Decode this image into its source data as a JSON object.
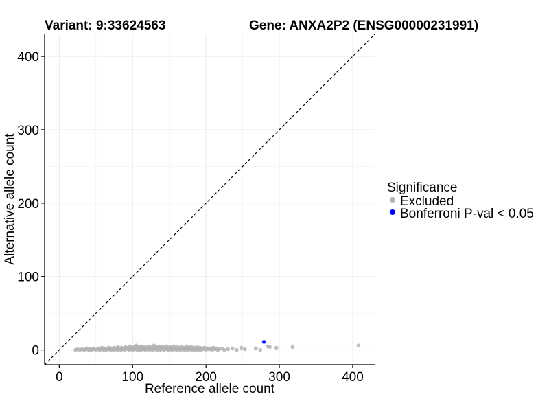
{
  "chart_data": {
    "type": "scatter",
    "title_variant": "Variant: 9:33624563",
    "title_gene": "Gene: ANXA2P2 (ENSG00000231991)",
    "xlabel": "Reference allele count",
    "ylabel": "Alternative allele count",
    "xlim": [
      -20,
      430
    ],
    "ylim": [
      -20,
      430
    ],
    "x_ticks": [
      0,
      100,
      200,
      300,
      400
    ],
    "y_ticks": [
      0,
      100,
      200,
      300,
      400
    ],
    "grid": true,
    "diagonal": "y = x (dashed)",
    "legend": {
      "title": "Significance",
      "position": "right",
      "entries": [
        {
          "label": "Excluded",
          "color": "#b3b3b3"
        },
        {
          "label": "Bonferroni P-val < 0.05",
          "color": "#0000ff"
        }
      ]
    },
    "series": [
      {
        "name": "Excluded",
        "color": "#b3b3b3",
        "points": [
          [
            22,
            0
          ],
          [
            25,
            1
          ],
          [
            28,
            0
          ],
          [
            31,
            1
          ],
          [
            34,
            0
          ],
          [
            36,
            1
          ],
          [
            38,
            2
          ],
          [
            40,
            0
          ],
          [
            42,
            1
          ],
          [
            44,
            0
          ],
          [
            46,
            2
          ],
          [
            48,
            1
          ],
          [
            50,
            0
          ],
          [
            52,
            1
          ],
          [
            54,
            2
          ],
          [
            55,
            0
          ],
          [
            57,
            1
          ],
          [
            58,
            3
          ],
          [
            60,
            0
          ],
          [
            61,
            2
          ],
          [
            63,
            1
          ],
          [
            64,
            0
          ],
          [
            66,
            2
          ],
          [
            67,
            1
          ],
          [
            68,
            3
          ],
          [
            70,
            0
          ],
          [
            71,
            2
          ],
          [
            72,
            1
          ],
          [
            74,
            0
          ],
          [
            75,
            3
          ],
          [
            76,
            1
          ],
          [
            78,
            2
          ],
          [
            79,
            0
          ],
          [
            80,
            4
          ],
          [
            81,
            1
          ],
          [
            83,
            2
          ],
          [
            84,
            0
          ],
          [
            85,
            3
          ],
          [
            86,
            1
          ],
          [
            88,
            2
          ],
          [
            89,
            0
          ],
          [
            90,
            4
          ],
          [
            91,
            1
          ],
          [
            92,
            3
          ],
          [
            94,
            2
          ],
          [
            95,
            0
          ],
          [
            96,
            5
          ],
          [
            97,
            1
          ],
          [
            98,
            3
          ],
          [
            99,
            2
          ],
          [
            100,
            0
          ],
          [
            101,
            4
          ],
          [
            102,
            1
          ],
          [
            103,
            3
          ],
          [
            104,
            2
          ],
          [
            105,
            6
          ],
          [
            106,
            0
          ],
          [
            107,
            3
          ],
          [
            108,
            1
          ],
          [
            109,
            4
          ],
          [
            110,
            2
          ],
          [
            111,
            0
          ],
          [
            112,
            5
          ],
          [
            113,
            1
          ],
          [
            114,
            3
          ],
          [
            115,
            2
          ],
          [
            116,
            4
          ],
          [
            117,
            0
          ],
          [
            118,
            3
          ],
          [
            119,
            1
          ],
          [
            120,
            2
          ],
          [
            121,
            5
          ],
          [
            122,
            0
          ],
          [
            123,
            3
          ],
          [
            124,
            1
          ],
          [
            125,
            4
          ],
          [
            126,
            2
          ],
          [
            127,
            0
          ],
          [
            128,
            3
          ],
          [
            129,
            6
          ],
          [
            130,
            1
          ],
          [
            131,
            2
          ],
          [
            132,
            4
          ],
          [
            133,
            0
          ],
          [
            134,
            3
          ],
          [
            135,
            1
          ],
          [
            136,
            5
          ],
          [
            137,
            2
          ],
          [
            138,
            0
          ],
          [
            139,
            3
          ],
          [
            140,
            2
          ],
          [
            141,
            4
          ],
          [
            142,
            1
          ],
          [
            143,
            0
          ],
          [
            144,
            3
          ],
          [
            145,
            2
          ],
          [
            146,
            5
          ],
          [
            147,
            1
          ],
          [
            148,
            3
          ],
          [
            149,
            0
          ],
          [
            150,
            2
          ],
          [
            151,
            4
          ],
          [
            152,
            1
          ],
          [
            153,
            3
          ],
          [
            154,
            0
          ],
          [
            155,
            2
          ],
          [
            156,
            5
          ],
          [
            157,
            1
          ],
          [
            158,
            3
          ],
          [
            159,
            2
          ],
          [
            160,
            0
          ],
          [
            161,
            4
          ],
          [
            162,
            1
          ],
          [
            163,
            2
          ],
          [
            164,
            3
          ],
          [
            165,
            0
          ],
          [
            166,
            2
          ],
          [
            167,
            4
          ],
          [
            168,
            1
          ],
          [
            169,
            3
          ],
          [
            170,
            2
          ],
          [
            171,
            0
          ],
          [
            172,
            3
          ],
          [
            173,
            1
          ],
          [
            174,
            5
          ],
          [
            175,
            2
          ],
          [
            176,
            0
          ],
          [
            177,
            3
          ],
          [
            178,
            1
          ],
          [
            179,
            2
          ],
          [
            180,
            4
          ],
          [
            181,
            0
          ],
          [
            182,
            2
          ],
          [
            183,
            1
          ],
          [
            184,
            3
          ],
          [
            185,
            0
          ],
          [
            186,
            2
          ],
          [
            187,
            1
          ],
          [
            188,
            4
          ],
          [
            189,
            0
          ],
          [
            190,
            2
          ],
          [
            191,
            1
          ],
          [
            192,
            3
          ],
          [
            193,
            0
          ],
          [
            194,
            2
          ],
          [
            196,
            1
          ],
          [
            198,
            3
          ],
          [
            200,
            0
          ],
          [
            202,
            2
          ],
          [
            204,
            1
          ],
          [
            206,
            2
          ],
          [
            208,
            0
          ],
          [
            210,
            3
          ],
          [
            212,
            1
          ],
          [
            214,
            2
          ],
          [
            216,
            0
          ],
          [
            218,
            1
          ],
          [
            222,
            2
          ],
          [
            225,
            0
          ],
          [
            230,
            1
          ],
          [
            236,
            2
          ],
          [
            242,
            0
          ],
          [
            248,
            3
          ],
          [
            253,
            1
          ],
          [
            268,
            2
          ],
          [
            274,
            0
          ],
          [
            284,
            5
          ],
          [
            287,
            4
          ],
          [
            296,
            3
          ],
          [
            318,
            4
          ],
          [
            408,
            6
          ]
        ]
      },
      {
        "name": "Bonferroni P-val < 0.05",
        "color": "#0000ff",
        "points": [
          [
            279,
            11
          ]
        ]
      }
    ]
  }
}
